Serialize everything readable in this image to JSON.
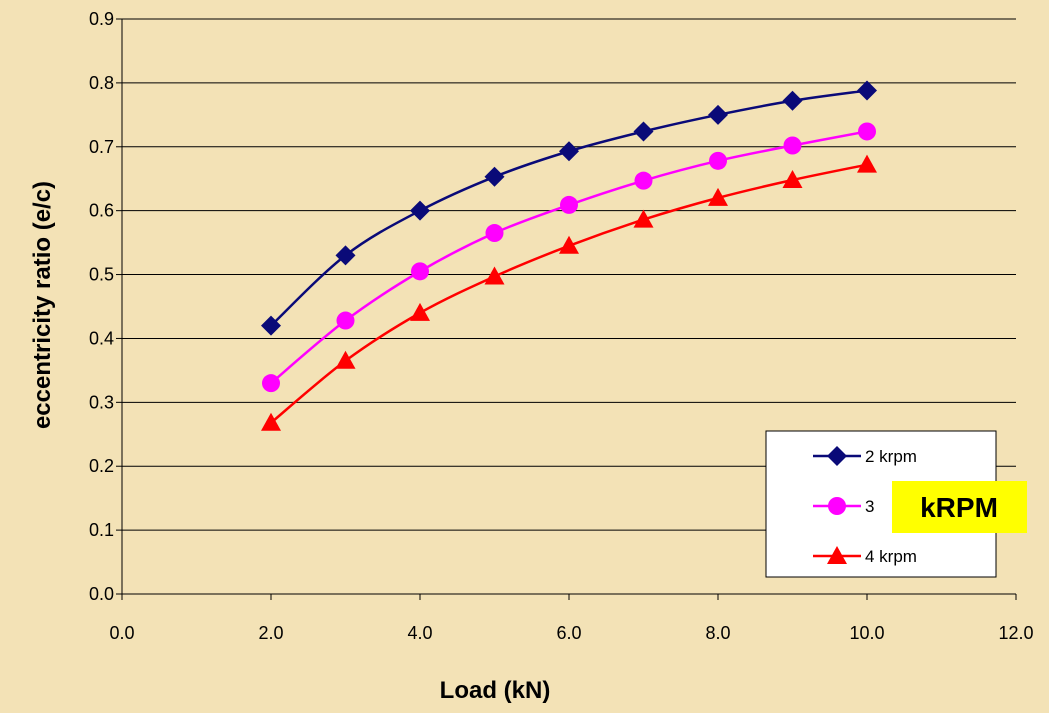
{
  "chart_data": {
    "type": "line",
    "title": "",
    "xlabel": "Load (kN)",
    "ylabel": "eccentricity ratio (e/c)",
    "xlim": [
      0,
      12
    ],
    "ylim": [
      0,
      0.9
    ],
    "x_ticks": [
      "0.0",
      "2.0",
      "4.0",
      "6.0",
      "8.0",
      "10.0",
      "12.0"
    ],
    "y_ticks": [
      "0.0",
      "0.1",
      "0.2",
      "0.3",
      "0.4",
      "0.5",
      "0.6",
      "0.7",
      "0.8",
      "0.9"
    ],
    "grid": "horizontal",
    "legend_position": "bottom-right",
    "x": [
      2,
      3,
      4,
      5,
      6,
      7,
      8,
      9,
      10
    ],
    "series": [
      {
        "name": "2 krpm",
        "marker": "diamond",
        "color": "#0a0a78",
        "values": [
          0.42,
          0.53,
          0.6,
          0.653,
          0.693,
          0.724,
          0.75,
          0.772,
          0.788
        ]
      },
      {
        "name": "3",
        "marker": "circle",
        "color": "#ff00ff",
        "values": [
          0.33,
          0.428,
          0.505,
          0.565,
          0.609,
          0.647,
          0.678,
          0.702,
          0.724
        ]
      },
      {
        "name": "4 krpm",
        "marker": "triangle",
        "color": "#ff0000",
        "values": [
          0.268,
          0.365,
          0.44,
          0.497,
          0.545,
          0.586,
          0.62,
          0.648,
          0.672
        ]
      }
    ]
  },
  "annotation": {
    "text": "kRPM",
    "background": "#ffff00"
  },
  "colors": {
    "background": "#f3e2b6",
    "plot_area": "#f3e2b6",
    "gridline": "#000000"
  }
}
